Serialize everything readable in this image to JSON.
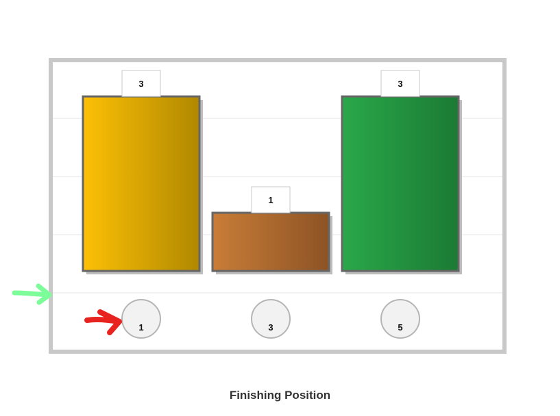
{
  "chart_data": {
    "type": "bar",
    "categories": [
      "1",
      "3",
      "5"
    ],
    "values": [
      3,
      1,
      3
    ],
    "xlabel": "Finishing Position",
    "ylabel": "",
    "ylim": [
      0,
      3.33
    ],
    "grid": true,
    "colors": {
      "1": [
        "#fdc006",
        "#b08800"
      ],
      "3": [
        "#c97d38",
        "#8d5324"
      ],
      "5": [
        "#2aa84a",
        "#1b7a34"
      ]
    },
    "frame_color": "#c8c8c8",
    "bar_border_color": "#666666",
    "grid_color": "#e5e5e5"
  },
  "annotations": {
    "green_arrow": "arrow-right-icon",
    "red_arrow": "arrow-right-icon",
    "green_arrow_color": "#7dfc9a",
    "red_arrow_color": "#e8231f"
  }
}
